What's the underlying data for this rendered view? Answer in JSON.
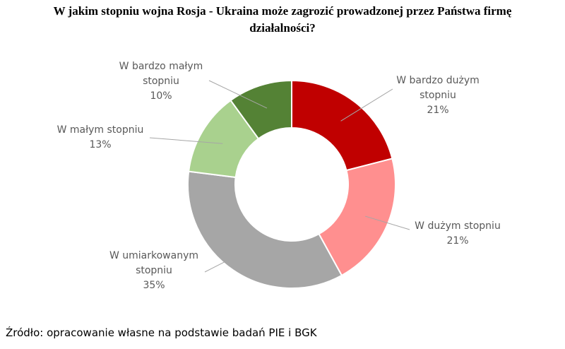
{
  "chart_data": {
    "type": "donut",
    "title": "W jakim stopniu wojna Rosja - Ukraina może zagrozić prowadzonej przez Państwa firmę działalności?",
    "categories": [
      "W bardzo dużym stopniu",
      "W dużym stopniu",
      "W umiarkowanym stopniu",
      "W małym stopniu",
      "W bardzo małym stopniu"
    ],
    "values": [
      21,
      21,
      35,
      13,
      10
    ],
    "value_labels": [
      "21%",
      "21%",
      "35%",
      "13%",
      "10%"
    ],
    "colors": [
      "#c00000",
      "#ff8f8f",
      "#a6a6a6",
      "#a9d18e",
      "#548235"
    ],
    "source": "Źródło: opracowanie własne na podstawie badań PIE i BGK"
  }
}
